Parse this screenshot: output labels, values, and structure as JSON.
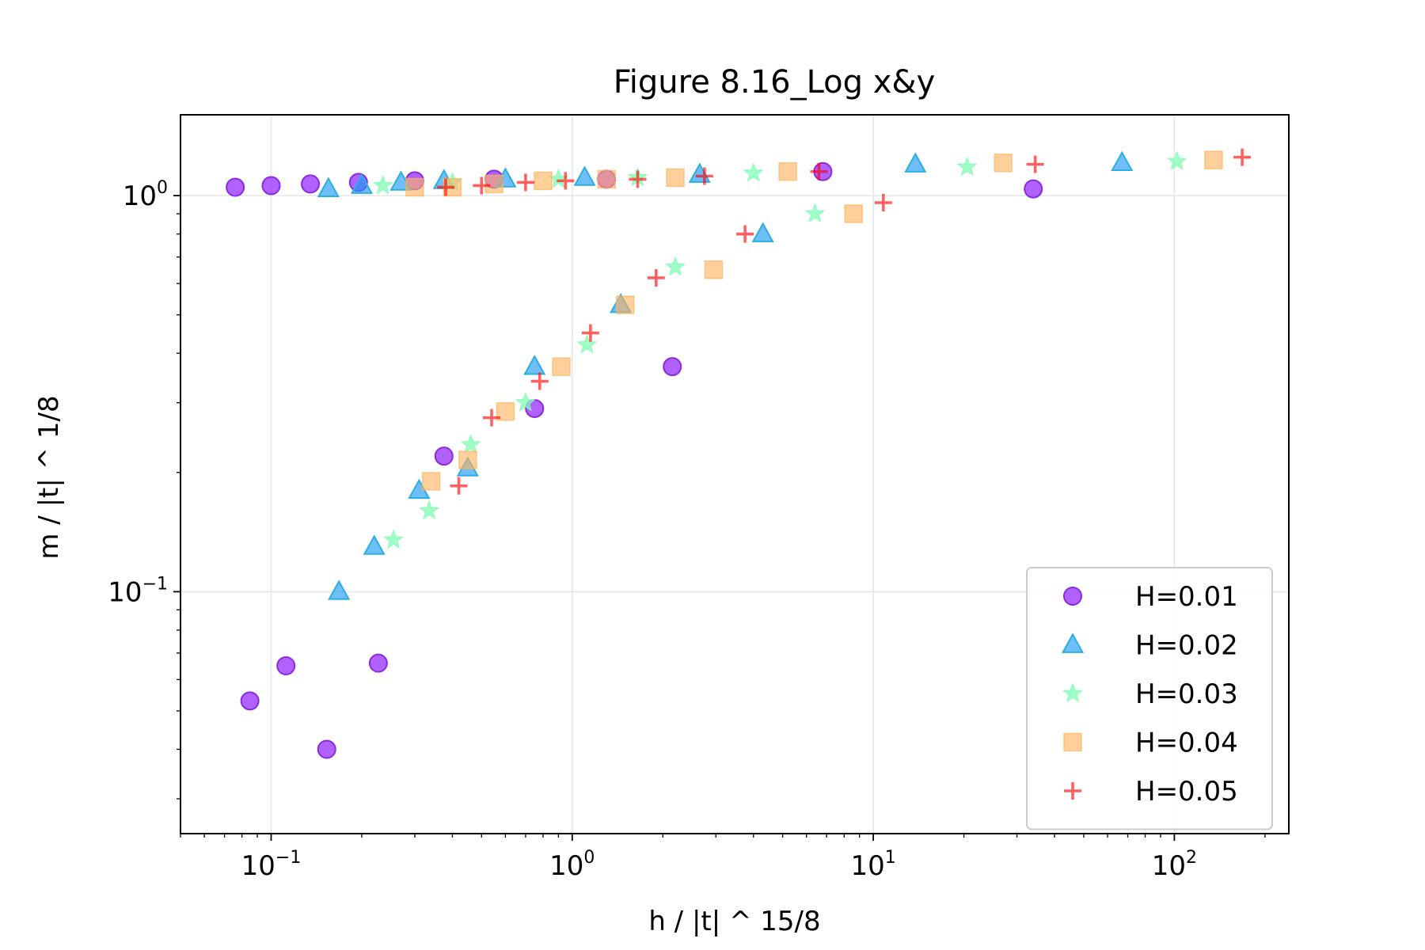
{
  "chart_data": {
    "type": "scatter",
    "title": "Figure 8.16_Log x&y",
    "xlabel": "h / |t| ^ 15/8",
    "ylabel": "m / |t| ^ 1/8",
    "xscale": "log",
    "yscale": "log",
    "xlim": [
      0.05,
      240
    ],
    "ylim": [
      0.0245,
      1.6
    ],
    "xticks": [
      {
        "value": 0.1,
        "label": "10^-1"
      },
      {
        "value": 1,
        "label": "10^0"
      },
      {
        "value": 10,
        "label": "10^1"
      },
      {
        "value": 100,
        "label": "10^2"
      }
    ],
    "yticks": [
      {
        "value": 0.1,
        "label": "10^-1"
      },
      {
        "value": 1,
        "label": "10^0"
      }
    ],
    "grid": true,
    "legend_position": "lower right",
    "series": [
      {
        "name": "H=0.01",
        "marker": "circle",
        "color": "#8000ff",
        "edge": "#8a2be2",
        "points": [
          [
            0.076,
            1.05
          ],
          [
            0.1,
            1.06
          ],
          [
            0.135,
            1.07
          ],
          [
            0.195,
            1.08
          ],
          [
            0.3,
            1.09
          ],
          [
            0.55,
            1.1
          ],
          [
            1.3,
            1.1
          ],
          [
            6.8,
            1.15
          ],
          [
            34,
            1.04
          ],
          [
            0.085,
            0.053
          ],
          [
            0.112,
            0.065
          ],
          [
            0.153,
            0.04
          ],
          [
            0.227,
            0.066
          ],
          [
            0.375,
            0.22
          ],
          [
            0.75,
            0.29
          ],
          [
            2.15,
            0.37
          ]
        ]
      },
      {
        "name": "H=0.02",
        "marker": "triangle",
        "color": "#1996f3",
        "edge": "#2ab0e0",
        "points": [
          [
            0.155,
            1.04
          ],
          [
            0.2,
            1.06
          ],
          [
            0.27,
            1.08
          ],
          [
            0.375,
            1.09
          ],
          [
            0.6,
            1.1
          ],
          [
            1.1,
            1.11
          ],
          [
            2.65,
            1.13
          ],
          [
            13.8,
            1.2
          ],
          [
            67,
            1.21
          ],
          [
            0.168,
            0.1
          ],
          [
            0.22,
            0.13
          ],
          [
            0.31,
            0.18
          ],
          [
            0.45,
            0.205
          ],
          [
            0.75,
            0.37
          ],
          [
            1.45,
            0.53
          ],
          [
            4.3,
            0.8
          ]
        ]
      },
      {
        "name": "H=0.03",
        "marker": "star",
        "color": "#80ffb4",
        "points": [
          [
            0.235,
            1.06
          ],
          [
            0.4,
            1.08
          ],
          [
            0.9,
            1.1
          ],
          [
            1.65,
            1.11
          ],
          [
            4.0,
            1.14
          ],
          [
            20.5,
            1.18
          ],
          [
            102,
            1.22
          ],
          [
            0.255,
            0.135
          ],
          [
            0.335,
            0.16
          ],
          [
            0.46,
            0.235
          ],
          [
            0.7,
            0.3
          ],
          [
            1.12,
            0.42
          ],
          [
            2.2,
            0.66
          ],
          [
            6.4,
            0.9
          ]
        ]
      },
      {
        "name": "H=0.04",
        "marker": "square",
        "color": "#ffb360",
        "points": [
          [
            0.3,
            1.05
          ],
          [
            0.4,
            1.05
          ],
          [
            0.55,
            1.07
          ],
          [
            0.8,
            1.09
          ],
          [
            1.3,
            1.1
          ],
          [
            2.2,
            1.11
          ],
          [
            5.2,
            1.15
          ],
          [
            27,
            1.21
          ],
          [
            135,
            1.23
          ],
          [
            0.34,
            0.19
          ],
          [
            0.45,
            0.215
          ],
          [
            0.6,
            0.285
          ],
          [
            0.92,
            0.37
          ],
          [
            1.5,
            0.53
          ],
          [
            2.95,
            0.65
          ],
          [
            8.6,
            0.9
          ]
        ]
      },
      {
        "name": "H=0.05",
        "marker": "plus",
        "color": "#ff0000",
        "points": [
          [
            0.38,
            1.05
          ],
          [
            0.5,
            1.06
          ],
          [
            0.7,
            1.08
          ],
          [
            0.95,
            1.09
          ],
          [
            1.65,
            1.1
          ],
          [
            2.75,
            1.12
          ],
          [
            6.6,
            1.15
          ],
          [
            34.5,
            1.2
          ],
          [
            168,
            1.25
          ],
          [
            0.42,
            0.185
          ],
          [
            0.54,
            0.275
          ],
          [
            0.78,
            0.34
          ],
          [
            1.15,
            0.45
          ],
          [
            1.9,
            0.62
          ],
          [
            3.75,
            0.8
          ],
          [
            10.8,
            0.96
          ]
        ]
      }
    ]
  }
}
